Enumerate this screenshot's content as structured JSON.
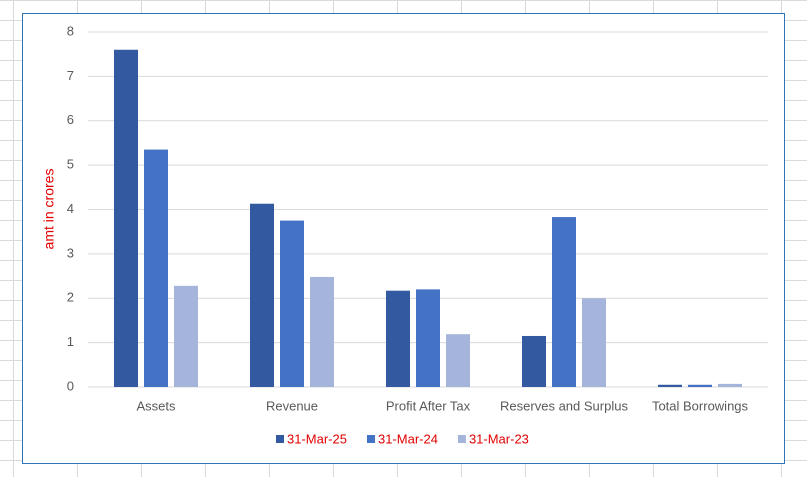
{
  "chart_data": {
    "type": "bar",
    "y_label": "amt in crores",
    "categories": [
      "Assets",
      "Revenue",
      "Profit After Tax",
      "Reserves and Surplus",
      "Total Borrowings"
    ],
    "series": [
      {
        "name": "31-Mar-25",
        "color": "#335aa1",
        "values": [
          7.6,
          4.13,
          2.17,
          1.15,
          0.05
        ]
      },
      {
        "name": "31-Mar-24",
        "color": "#4472c4",
        "values": [
          5.35,
          3.75,
          2.2,
          3.83,
          0.05
        ]
      },
      {
        "name": "31-Mar-23",
        "color": "#a5b4db",
        "values": [
          2.28,
          2.48,
          1.19,
          2.0,
          0.07
        ]
      }
    ],
    "ylim": [
      0,
      8
    ],
    "yticks": [
      0,
      1,
      2,
      3,
      4,
      5,
      6,
      7,
      8
    ],
    "grid": true,
    "legend": "bottom"
  }
}
